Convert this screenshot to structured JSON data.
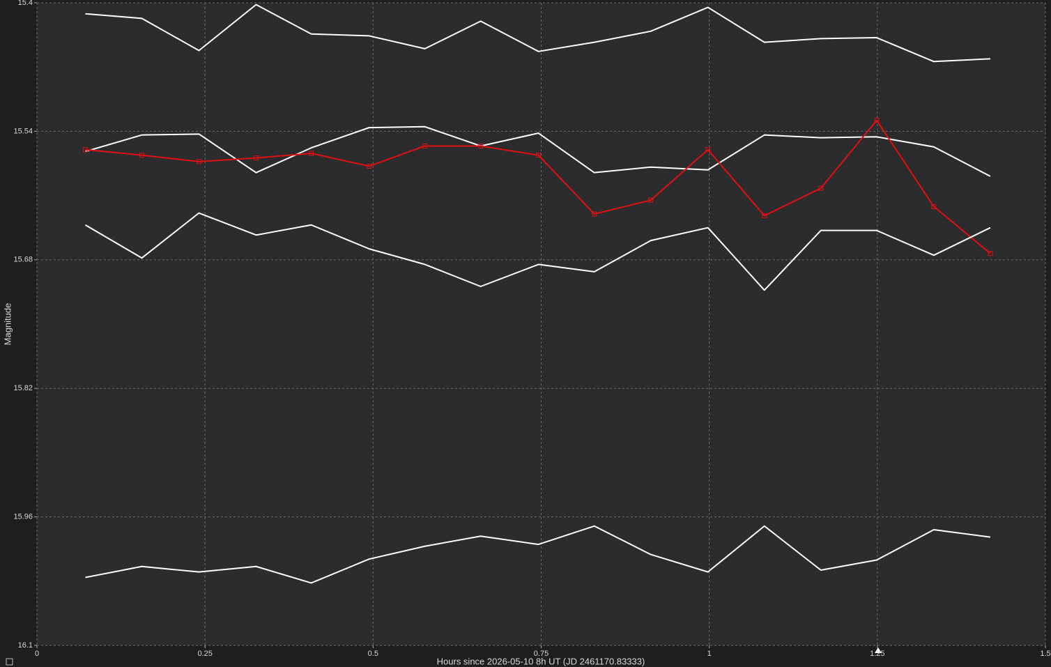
{
  "chart_data": {
    "type": "line",
    "x_label": "Hours since 2026-05-10 8h UT (JD 2461170.83333)",
    "y_label": "Magnitude",
    "x": [
      0.072,
      0.156,
      0.241,
      0.326,
      0.408,
      0.494,
      0.577,
      0.66,
      0.746,
      0.829,
      0.913,
      0.998,
      1.082,
      1.166,
      1.249,
      1.334,
      1.418
    ],
    "series": [
      {
        "color": "#ffffff",
        "marker": "none",
        "values": [
          15.412,
          15.417,
          15.452,
          15.402,
          15.434,
          15.436,
          15.45,
          15.42,
          15.453,
          15.443,
          15.431,
          15.405,
          15.443,
          15.439,
          15.438,
          15.464,
          15.461
        ]
      },
      {
        "color": "#ffffff",
        "marker": "none",
        "values": [
          15.562,
          15.544,
          15.543,
          15.585,
          15.558,
          15.536,
          15.535,
          15.556,
          15.542,
          15.585,
          15.579,
          15.582,
          15.544,
          15.547,
          15.546,
          15.557,
          15.589
        ]
      },
      {
        "color": "#e01010",
        "marker": "square",
        "values": [
          15.56,
          15.566,
          15.573,
          15.569,
          15.564,
          15.578,
          15.556,
          15.556,
          15.566,
          15.63,
          15.615,
          15.56,
          15.632,
          15.602,
          15.528,
          15.622,
          15.673
        ]
      },
      {
        "color": "#ffffff",
        "marker": "none",
        "values": [
          15.642,
          15.678,
          15.629,
          15.653,
          15.642,
          15.668,
          15.685,
          15.709,
          15.685,
          15.693,
          15.659,
          15.645,
          15.713,
          15.648,
          15.648,
          15.675,
          15.645
        ]
      },
      {
        "color": "#ffffff",
        "marker": "none",
        "values": [
          16.026,
          16.014,
          16.02,
          16.014,
          16.032,
          16.006,
          15.992,
          15.981,
          15.99,
          15.97,
          16.001,
          16.02,
          15.97,
          16.018,
          16.007,
          15.974,
          15.982
        ]
      }
    ],
    "xlim": [
      0,
      1.5
    ],
    "xticks": [
      0,
      0.25,
      0.5,
      0.75,
      1,
      1.25,
      1.5
    ],
    "ylim": [
      16.1,
      15.4
    ],
    "yticks": [
      15.4,
      15.54,
      15.68,
      15.82,
      15.96,
      16.1
    ],
    "grid": true
  }
}
